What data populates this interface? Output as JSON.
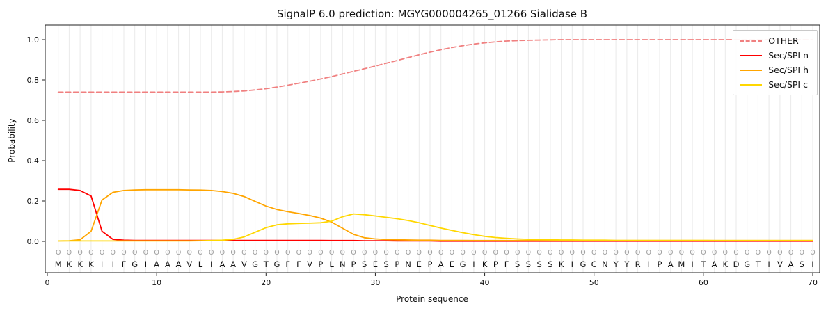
{
  "chart_data": {
    "type": "line",
    "title": "SignalP 6.0 prediction: MGYG000004265_01266 Sialidase B",
    "xlabel": "Protein sequence",
    "ylabel": "Probability",
    "xlim": [
      0,
      70.6
    ],
    "ylim": [
      0,
      1.0
    ],
    "xticks": [
      0,
      10,
      20,
      30,
      40,
      50,
      60,
      70
    ],
    "yticks": [
      0.0,
      0.2,
      0.4,
      0.6,
      0.8,
      1.0
    ],
    "grid": "vertical-line-per-residue",
    "legend_position": "upper right",
    "sequence": "MKKKIIFGIAAAVLIAAVGTGFFVPLNPSESPNEPAEGIKPFSSSSKIGCNYYRIPAMITAKDGTIVASI",
    "position_labels": "OOOOOOOOOOOOOOOOOOOOOOOOOOOOOOOOOOOOOOOOOOOOOOOOOOOOOOOOOOOOOOOOOOOOOO",
    "series": [
      {
        "name": "OTHER",
        "color": "#f08080",
        "dashed": true,
        "values": [
          0.74,
          0.74,
          0.74,
          0.74,
          0.74,
          0.74,
          0.74,
          0.74,
          0.74,
          0.74,
          0.74,
          0.74,
          0.74,
          0.74,
          0.74,
          0.741,
          0.743,
          0.746,
          0.751,
          0.757,
          0.765,
          0.774,
          0.784,
          0.794,
          0.805,
          0.817,
          0.83,
          0.843,
          0.856,
          0.869,
          0.883,
          0.897,
          0.911,
          0.925,
          0.938,
          0.95,
          0.961,
          0.97,
          0.978,
          0.984,
          0.989,
          0.993,
          0.995,
          0.997,
          0.998,
          0.999,
          1.0,
          1.0,
          1.0,
          1.0,
          1.0,
          1.0,
          1.0,
          1.0,
          1.0,
          1.0,
          1.0,
          1.0,
          1.0,
          1.0,
          1.0,
          1.0,
          1.0,
          1.0,
          1.0,
          1.0,
          1.0,
          1.0,
          1.0,
          1.0
        ]
      },
      {
        "name": "Sec/SPI n",
        "color": "#ff0000",
        "dashed": false,
        "values": [
          0.258,
          0.258,
          0.252,
          0.225,
          0.05,
          0.01,
          0.006,
          0.005,
          0.005,
          0.005,
          0.005,
          0.005,
          0.005,
          0.005,
          0.005,
          0.005,
          0.005,
          0.005,
          0.005,
          0.005,
          0.005,
          0.005,
          0.005,
          0.005,
          0.005,
          0.004,
          0.004,
          0.004,
          0.003,
          0.003,
          0.003,
          0.002,
          0.002,
          0.002,
          0.002,
          0.001,
          0.001,
          0.001,
          0.001,
          0.001,
          0.001,
          0.001,
          0.001,
          0.001,
          0.001,
          0.001,
          0.001,
          0.001,
          0.001,
          0.001,
          0.001,
          0.001,
          0.001,
          0.001,
          0.001,
          0.001,
          0.001,
          0.001,
          0.001,
          0.001,
          0.001,
          0.001,
          0.001,
          0.001,
          0.001,
          0.001,
          0.001,
          0.001,
          0.001,
          0.001
        ]
      },
      {
        "name": "Sec/SPI h",
        "color": "#ffa500",
        "dashed": false,
        "values": [
          0.002,
          0.003,
          0.008,
          0.05,
          0.205,
          0.243,
          0.252,
          0.255,
          0.256,
          0.256,
          0.256,
          0.256,
          0.255,
          0.254,
          0.252,
          0.247,
          0.238,
          0.222,
          0.198,
          0.175,
          0.158,
          0.147,
          0.138,
          0.128,
          0.115,
          0.095,
          0.065,
          0.035,
          0.018,
          0.012,
          0.009,
          0.008,
          0.007,
          0.006,
          0.006,
          0.005,
          0.005,
          0.005,
          0.004,
          0.004,
          0.004,
          0.004,
          0.004,
          0.004,
          0.004,
          0.004,
          0.004,
          0.004,
          0.004,
          0.004,
          0.004,
          0.004,
          0.004,
          0.004,
          0.004,
          0.004,
          0.004,
          0.004,
          0.004,
          0.004,
          0.004,
          0.004,
          0.004,
          0.004,
          0.004,
          0.004,
          0.004,
          0.004,
          0.004,
          0.004
        ]
      },
      {
        "name": "Sec/SPI c",
        "color": "#ffd700",
        "dashed": false,
        "values": [
          0.002,
          0.002,
          0.002,
          0.002,
          0.002,
          0.002,
          0.002,
          0.002,
          0.002,
          0.002,
          0.002,
          0.002,
          0.002,
          0.003,
          0.004,
          0.006,
          0.01,
          0.022,
          0.045,
          0.068,
          0.082,
          0.087,
          0.089,
          0.09,
          0.092,
          0.1,
          0.122,
          0.136,
          0.132,
          0.126,
          0.119,
          0.112,
          0.103,
          0.092,
          0.079,
          0.066,
          0.054,
          0.043,
          0.033,
          0.025,
          0.019,
          0.015,
          0.012,
          0.01,
          0.009,
          0.008,
          0.007,
          0.007,
          0.006,
          0.006,
          0.006,
          0.005,
          0.005,
          0.005,
          0.005,
          0.005,
          0.005,
          0.005,
          0.005,
          0.005,
          0.004,
          0.004,
          0.004,
          0.004,
          0.004,
          0.004,
          0.004,
          0.004,
          0.004,
          0.004
        ]
      }
    ]
  }
}
